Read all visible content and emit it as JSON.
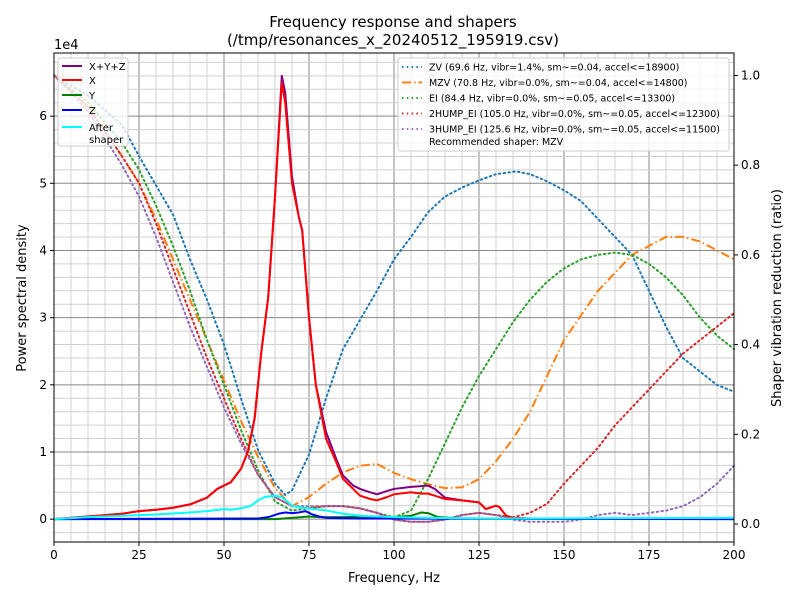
{
  "chart_data": {
    "type": "line",
    "title": "Frequency response and shapers",
    "subtitle": "(/tmp/resonances_x_20240512_195919.csv)",
    "xlabel": "Frequency, Hz",
    "ylabel": "Power spectral density",
    "y2label": "Shaper vibration reduction (ratio)",
    "y_multiplier_label": "1e4",
    "xlim": [
      0,
      200
    ],
    "ylim": [
      -0.34,
      6.94
    ],
    "y2lim": [
      -0.04,
      1.05
    ],
    "xticks": [
      0,
      25,
      50,
      75,
      100,
      125,
      150,
      175,
      200
    ],
    "yticks": [
      0,
      1,
      2,
      3,
      4,
      5,
      6
    ],
    "y2ticks": [
      "0.0",
      "0.2",
      "0.4",
      "0.6",
      "0.8",
      "1.0"
    ],
    "grid": true,
    "psd_legend_position": "top-left",
    "shaper_legend_position": "top-right",
    "psd_series": [
      {
        "name": "X+Y+Z",
        "color": "#800080",
        "x": [
          0,
          10,
          20,
          25,
          30,
          35,
          40,
          45,
          48,
          50,
          52,
          55,
          57,
          59,
          61,
          63,
          65,
          67,
          68,
          70,
          72,
          73,
          75,
          77,
          80,
          83,
          85,
          88,
          90,
          93,
          95,
          98,
          100,
          105,
          110,
          112,
          115,
          120,
          125,
          127,
          130,
          131,
          133,
          135,
          140,
          200
        ],
        "y": [
          0,
          0.04,
          0.08,
          0.12,
          0.14,
          0.17,
          0.22,
          0.32,
          0.45,
          0.5,
          0.55,
          0.75,
          1.0,
          1.5,
          2.5,
          3.3,
          4.8,
          6.6,
          6.35,
          5.1,
          4.5,
          4.3,
          3.0,
          2.0,
          1.3,
          0.9,
          0.65,
          0.5,
          0.45,
          0.4,
          0.37,
          0.42,
          0.45,
          0.48,
          0.5,
          0.45,
          0.32,
          0.28,
          0.25,
          0.15,
          0.2,
          0.18,
          0.05,
          0.02,
          0.01,
          0.01
        ]
      },
      {
        "name": "X",
        "color": "#ff0000",
        "x": [
          0,
          10,
          20,
          25,
          30,
          35,
          40,
          45,
          48,
          50,
          52,
          55,
          57,
          59,
          61,
          63,
          65,
          67,
          68,
          70,
          72,
          73,
          75,
          77,
          80,
          83,
          85,
          88,
          90,
          93,
          95,
          98,
          100,
          105,
          108,
          110,
          112,
          115,
          120,
          125,
          127,
          130,
          131,
          133,
          135,
          140,
          200
        ],
        "y": [
          0,
          0.04,
          0.08,
          0.12,
          0.14,
          0.17,
          0.22,
          0.32,
          0.45,
          0.5,
          0.55,
          0.75,
          1.0,
          1.5,
          2.5,
          3.3,
          4.8,
          6.5,
          6.2,
          5.0,
          4.5,
          4.3,
          3.0,
          2.0,
          1.2,
          0.85,
          0.6,
          0.45,
          0.35,
          0.3,
          0.28,
          0.33,
          0.37,
          0.4,
          0.38,
          0.38,
          0.35,
          0.3,
          0.28,
          0.25,
          0.15,
          0.2,
          0.18,
          0.05,
          0.02,
          0.01,
          0.01
        ]
      },
      {
        "name": "Y",
        "color": "#008000",
        "x": [
          0,
          65,
          70,
          75,
          78,
          85,
          95,
          100,
          105,
          108,
          110,
          113,
          120,
          200
        ],
        "y": [
          0,
          0,
          0.02,
          0.04,
          0.03,
          0.03,
          0.04,
          0.03,
          0.05,
          0.1,
          0.09,
          0.03,
          0.01,
          0
        ]
      },
      {
        "name": "Z",
        "color": "#0000ff",
        "x": [
          0,
          60,
          63,
          66,
          68,
          70,
          72,
          74,
          76,
          78,
          80,
          90,
          200
        ],
        "y": [
          0,
          0.01,
          0.03,
          0.08,
          0.1,
          0.09,
          0.1,
          0.12,
          0.07,
          0.04,
          0.02,
          0.01,
          0
        ]
      },
      {
        "name": "After\nshaper",
        "color": "#00ffff",
        "x": [
          0,
          10,
          20,
          30,
          40,
          45,
          50,
          52,
          55,
          58,
          60,
          62,
          65,
          67,
          70,
          73,
          80,
          85,
          90,
          100,
          110,
          130,
          200
        ],
        "y": [
          0,
          0.03,
          0.05,
          0.07,
          0.1,
          0.12,
          0.15,
          0.14,
          0.16,
          0.2,
          0.28,
          0.33,
          0.35,
          0.33,
          0.2,
          0.17,
          0.13,
          0.08,
          0.05,
          0.03,
          0.02,
          0.01,
          0.02
        ]
      }
    ],
    "shaper_series": [
      {
        "name": "ZV (69.6 Hz, vibr=1.4%, sm~=0.04, accel<=18900)",
        "color": "#1f77b4",
        "style": "dotted",
        "x": [
          0,
          10,
          20,
          25,
          30,
          35,
          40,
          45,
          50,
          55,
          60,
          65,
          68,
          70,
          75,
          80,
          85,
          90,
          95,
          100,
          105,
          110,
          115,
          120,
          125,
          130,
          136,
          140,
          145,
          150,
          155,
          160,
          165,
          170,
          175,
          180,
          185,
          190,
          195,
          200
        ],
        "y": [
          1.0,
          0.955,
          0.89,
          0.82,
          0.755,
          0.69,
          0.59,
          0.5,
          0.4,
          0.28,
          0.165,
          0.09,
          0.065,
          0.075,
          0.155,
          0.28,
          0.39,
          0.455,
          0.52,
          0.59,
          0.64,
          0.695,
          0.73,
          0.75,
          0.766,
          0.78,
          0.786,
          0.78,
          0.764,
          0.744,
          0.72,
          0.68,
          0.64,
          0.6,
          0.52,
          0.44,
          0.37,
          0.34,
          0.31,
          0.295
        ]
      },
      {
        "name": "MZV (70.8 Hz, vibr=0.0%, sm~=0.04, accel<=14800)",
        "color": "#ff7f0e",
        "style": "dashdot",
        "x": [
          0,
          10,
          20,
          25,
          30,
          35,
          40,
          45,
          50,
          55,
          60,
          65,
          70,
          75,
          80,
          85,
          90,
          95,
          100,
          105,
          110,
          115,
          120,
          125,
          130,
          135,
          140,
          150,
          160,
          170,
          175,
          180,
          185,
          190,
          200
        ],
        "y": [
          1.0,
          0.93,
          0.82,
          0.76,
          0.68,
          0.59,
          0.5,
          0.41,
          0.32,
          0.23,
          0.15,
          0.08,
          0.04,
          0.06,
          0.09,
          0.115,
          0.13,
          0.134,
          0.114,
          0.1,
          0.089,
          0.08,
          0.082,
          0.1,
          0.14,
          0.19,
          0.25,
          0.41,
          0.52,
          0.6,
          0.62,
          0.64,
          0.64,
          0.63,
          0.59
        ]
      },
      {
        "name": "EI (84.4 Hz, vibr=0.0%, sm~=0.05, accel<=13300)",
        "color": "#2ca02c",
        "style": "dotted",
        "x": [
          0,
          10,
          20,
          25,
          30,
          35,
          40,
          45,
          50,
          55,
          60,
          65,
          70,
          75,
          80,
          85,
          90,
          95,
          100,
          105,
          110,
          115,
          120,
          125,
          130,
          135,
          140,
          145,
          150,
          155,
          160,
          165,
          170,
          175,
          180,
          185,
          190,
          195,
          200
        ],
        "y": [
          1.0,
          0.94,
          0.85,
          0.79,
          0.71,
          0.62,
          0.52,
          0.41,
          0.31,
          0.21,
          0.12,
          0.05,
          0.03,
          0.035,
          0.04,
          0.04,
          0.035,
          0.025,
          0.015,
          0.03,
          0.1,
          0.18,
          0.26,
          0.33,
          0.39,
          0.45,
          0.5,
          0.54,
          0.57,
          0.59,
          0.6,
          0.605,
          0.6,
          0.58,
          0.55,
          0.51,
          0.46,
          0.42,
          0.39
        ]
      },
      {
        "name": "2HUMP_EI (105.0 Hz, vibr=0.0%, sm~=0.05, accel<=12300)",
        "color": "#d62728",
        "style": "dotted",
        "x": [
          0,
          10,
          20,
          25,
          30,
          35,
          40,
          45,
          50,
          55,
          60,
          65,
          70,
          75,
          80,
          85,
          90,
          95,
          100,
          105,
          110,
          115,
          120,
          125,
          130,
          135,
          140,
          145,
          150,
          155,
          160,
          165,
          170,
          175,
          180,
          185,
          190,
          195,
          200
        ],
        "y": [
          1.0,
          0.93,
          0.82,
          0.76,
          0.67,
          0.57,
          0.47,
          0.37,
          0.28,
          0.19,
          0.11,
          0.06,
          0.04,
          0.035,
          0.04,
          0.04,
          0.035,
          0.025,
          0.01,
          0.005,
          0.005,
          0.01,
          0.02,
          0.025,
          0.02,
          0.015,
          0.025,
          0.045,
          0.09,
          0.13,
          0.17,
          0.22,
          0.26,
          0.3,
          0.34,
          0.38,
          0.41,
          0.44,
          0.47
        ]
      },
      {
        "name": "3HUMP_EI (125.6 Hz, vibr=0.0%, sm~=0.05, accel<=11500)",
        "color": "#9467bd",
        "style": "dotted",
        "x": [
          0,
          10,
          20,
          25,
          30,
          35,
          40,
          45,
          50,
          55,
          60,
          65,
          70,
          75,
          80,
          85,
          90,
          95,
          100,
          105,
          110,
          115,
          120,
          125,
          130,
          135,
          140,
          150,
          155,
          160,
          165,
          170,
          175,
          180,
          185,
          190,
          195,
          200
        ],
        "y": [
          1.0,
          0.92,
          0.8,
          0.73,
          0.64,
          0.54,
          0.44,
          0.35,
          0.26,
          0.18,
          0.11,
          0.06,
          0.04,
          0.04,
          0.04,
          0.04,
          0.035,
          0.025,
          0.01,
          0.005,
          0.005,
          0.01,
          0.02,
          0.025,
          0.02,
          0.01,
          0.005,
          0.005,
          0.01,
          0.02,
          0.025,
          0.02,
          0.025,
          0.03,
          0.04,
          0.06,
          0.09,
          0.13
        ]
      }
    ],
    "recommendation": "Recommended shaper: MZV"
  }
}
